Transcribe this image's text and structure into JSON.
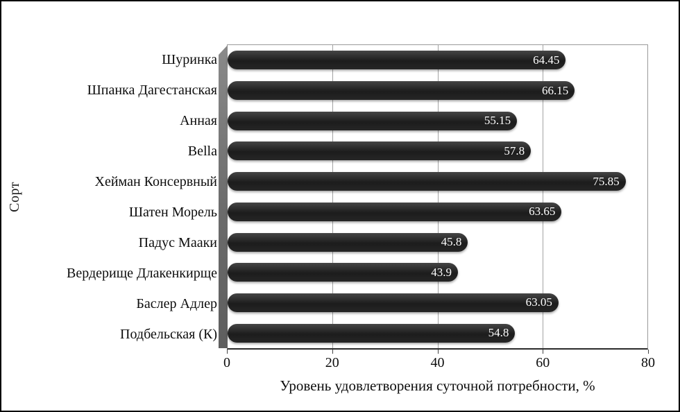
{
  "chart_data": {
    "type": "bar",
    "orientation": "horizontal",
    "categories": [
      "Шуринка",
      "Шпанка Дагестанская",
      "Анная",
      "Bella",
      "Хейман Консервный",
      "Шатен Морель",
      "Падус Мааки",
      "Вердерище Длакенкирще",
      "Баслер Адлер",
      "Подбельская (К)"
    ],
    "values": [
      64.45,
      66.15,
      55.15,
      57.8,
      75.85,
      63.65,
      45.8,
      43.9,
      63.05,
      54.8
    ],
    "value_labels": [
      "64.45",
      "66.15",
      "55.15",
      "57.8",
      "75.85",
      "63.65",
      "45.8",
      "43.9",
      "63.05",
      "54.8"
    ],
    "title": "",
    "xlabel": "Уровень удовлетворения суточной потребности, %",
    "ylabel": "Сорт",
    "xlim": [
      0,
      80
    ],
    "xticks": [
      0,
      20,
      40,
      60,
      80
    ],
    "xtick_labels": [
      "0",
      "20",
      "40",
      "60",
      "80"
    ],
    "grid": true,
    "legend": "none",
    "bar_color": "#262626",
    "value_label_color": "#ffffff",
    "wall_color": "#777777"
  }
}
